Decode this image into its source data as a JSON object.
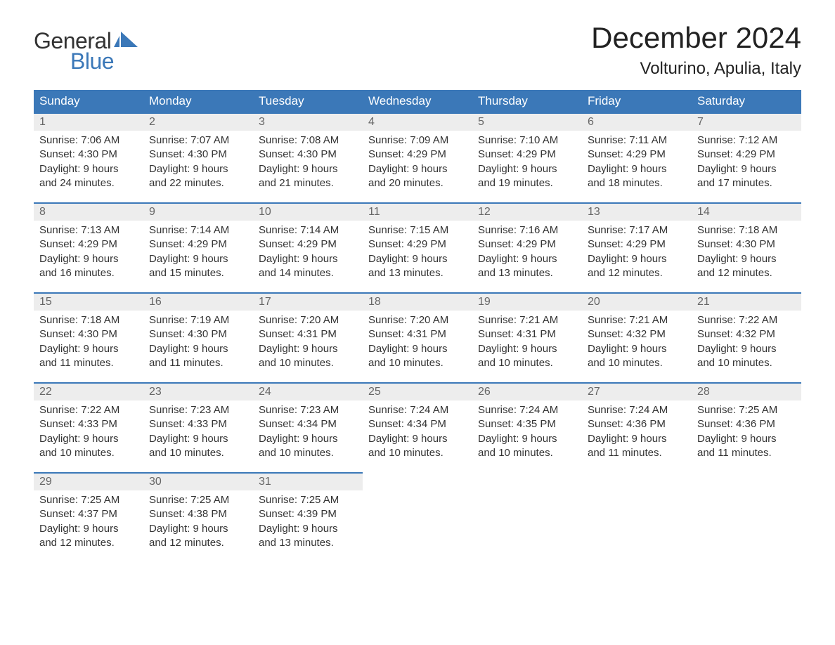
{
  "logo": {
    "text1": "General",
    "text2": "Blue",
    "accent_color": "#3b78b8"
  },
  "title": "December 2024",
  "location": "Volturino, Apulia, Italy",
  "colors": {
    "header_bg": "#3b78b8",
    "header_text": "#ffffff",
    "daynum_bg": "#ededed",
    "daynum_text": "#666666",
    "body_text": "#333333",
    "row_border": "#3b78b8"
  },
  "day_headers": [
    "Sunday",
    "Monday",
    "Tuesday",
    "Wednesday",
    "Thursday",
    "Friday",
    "Saturday"
  ],
  "weeks": [
    [
      {
        "n": "1",
        "sr": "7:06 AM",
        "ss": "4:30 PM",
        "dl": "9 hours",
        "dm": "and 24 minutes."
      },
      {
        "n": "2",
        "sr": "7:07 AM",
        "ss": "4:30 PM",
        "dl": "9 hours",
        "dm": "and 22 minutes."
      },
      {
        "n": "3",
        "sr": "7:08 AM",
        "ss": "4:30 PM",
        "dl": "9 hours",
        "dm": "and 21 minutes."
      },
      {
        "n": "4",
        "sr": "7:09 AM",
        "ss": "4:29 PM",
        "dl": "9 hours",
        "dm": "and 20 minutes."
      },
      {
        "n": "5",
        "sr": "7:10 AM",
        "ss": "4:29 PM",
        "dl": "9 hours",
        "dm": "and 19 minutes."
      },
      {
        "n": "6",
        "sr": "7:11 AM",
        "ss": "4:29 PM",
        "dl": "9 hours",
        "dm": "and 18 minutes."
      },
      {
        "n": "7",
        "sr": "7:12 AM",
        "ss": "4:29 PM",
        "dl": "9 hours",
        "dm": "and 17 minutes."
      }
    ],
    [
      {
        "n": "8",
        "sr": "7:13 AM",
        "ss": "4:29 PM",
        "dl": "9 hours",
        "dm": "and 16 minutes."
      },
      {
        "n": "9",
        "sr": "7:14 AM",
        "ss": "4:29 PM",
        "dl": "9 hours",
        "dm": "and 15 minutes."
      },
      {
        "n": "10",
        "sr": "7:14 AM",
        "ss": "4:29 PM",
        "dl": "9 hours",
        "dm": "and 14 minutes."
      },
      {
        "n": "11",
        "sr": "7:15 AM",
        "ss": "4:29 PM",
        "dl": "9 hours",
        "dm": "and 13 minutes."
      },
      {
        "n": "12",
        "sr": "7:16 AM",
        "ss": "4:29 PM",
        "dl": "9 hours",
        "dm": "and 13 minutes."
      },
      {
        "n": "13",
        "sr": "7:17 AM",
        "ss": "4:29 PM",
        "dl": "9 hours",
        "dm": "and 12 minutes."
      },
      {
        "n": "14",
        "sr": "7:18 AM",
        "ss": "4:30 PM",
        "dl": "9 hours",
        "dm": "and 12 minutes."
      }
    ],
    [
      {
        "n": "15",
        "sr": "7:18 AM",
        "ss": "4:30 PM",
        "dl": "9 hours",
        "dm": "and 11 minutes."
      },
      {
        "n": "16",
        "sr": "7:19 AM",
        "ss": "4:30 PM",
        "dl": "9 hours",
        "dm": "and 11 minutes."
      },
      {
        "n": "17",
        "sr": "7:20 AM",
        "ss": "4:31 PM",
        "dl": "9 hours",
        "dm": "and 10 minutes."
      },
      {
        "n": "18",
        "sr": "7:20 AM",
        "ss": "4:31 PM",
        "dl": "9 hours",
        "dm": "and 10 minutes."
      },
      {
        "n": "19",
        "sr": "7:21 AM",
        "ss": "4:31 PM",
        "dl": "9 hours",
        "dm": "and 10 minutes."
      },
      {
        "n": "20",
        "sr": "7:21 AM",
        "ss": "4:32 PM",
        "dl": "9 hours",
        "dm": "and 10 minutes."
      },
      {
        "n": "21",
        "sr": "7:22 AM",
        "ss": "4:32 PM",
        "dl": "9 hours",
        "dm": "and 10 minutes."
      }
    ],
    [
      {
        "n": "22",
        "sr": "7:22 AM",
        "ss": "4:33 PM",
        "dl": "9 hours",
        "dm": "and 10 minutes."
      },
      {
        "n": "23",
        "sr": "7:23 AM",
        "ss": "4:33 PM",
        "dl": "9 hours",
        "dm": "and 10 minutes."
      },
      {
        "n": "24",
        "sr": "7:23 AM",
        "ss": "4:34 PM",
        "dl": "9 hours",
        "dm": "and 10 minutes."
      },
      {
        "n": "25",
        "sr": "7:24 AM",
        "ss": "4:34 PM",
        "dl": "9 hours",
        "dm": "and 10 minutes."
      },
      {
        "n": "26",
        "sr": "7:24 AM",
        "ss": "4:35 PM",
        "dl": "9 hours",
        "dm": "and 10 minutes."
      },
      {
        "n": "27",
        "sr": "7:24 AM",
        "ss": "4:36 PM",
        "dl": "9 hours",
        "dm": "and 11 minutes."
      },
      {
        "n": "28",
        "sr": "7:25 AM",
        "ss": "4:36 PM",
        "dl": "9 hours",
        "dm": "and 11 minutes."
      }
    ],
    [
      {
        "n": "29",
        "sr": "7:25 AM",
        "ss": "4:37 PM",
        "dl": "9 hours",
        "dm": "and 12 minutes."
      },
      {
        "n": "30",
        "sr": "7:25 AM",
        "ss": "4:38 PM",
        "dl": "9 hours",
        "dm": "and 12 minutes."
      },
      {
        "n": "31",
        "sr": "7:25 AM",
        "ss": "4:39 PM",
        "dl": "9 hours",
        "dm": "and 13 minutes."
      },
      null,
      null,
      null,
      null
    ]
  ],
  "labels": {
    "sunrise": "Sunrise:",
    "sunset": "Sunset:",
    "daylight": "Daylight:"
  }
}
